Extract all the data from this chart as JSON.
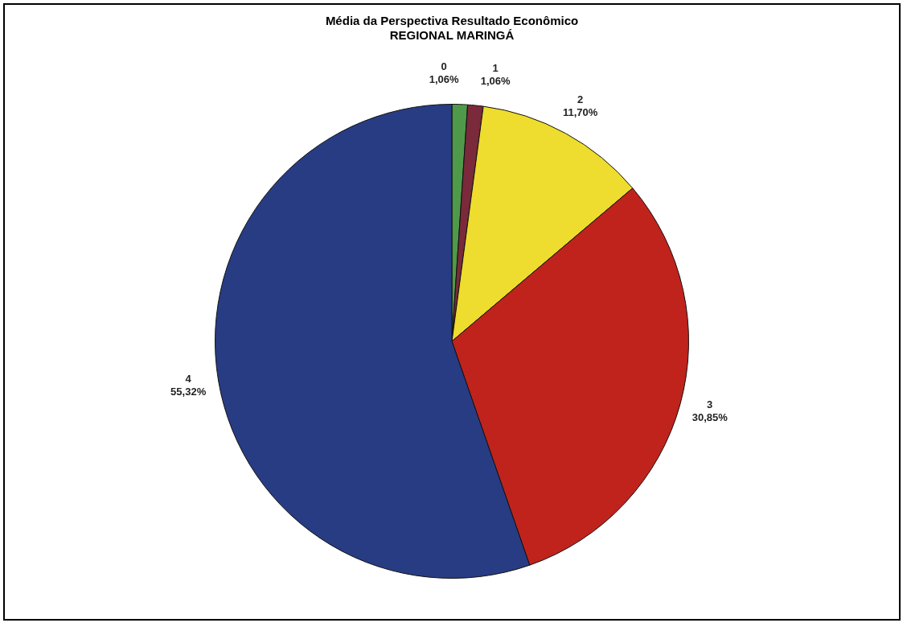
{
  "chart_data": {
    "type": "pie",
    "title": "Média da Perspectiva Resultado Econômico",
    "subtitle": "REGIONAL MARINGÁ",
    "categories": [
      "0",
      "1",
      "2",
      "3",
      "4"
    ],
    "values": [
      1.06,
      1.06,
      11.7,
      30.85,
      55.32
    ],
    "value_labels": [
      "1,06%",
      "1,06%",
      "11,70%",
      "30,85%",
      "55,32%"
    ],
    "colors": [
      "#4f9a4a",
      "#7a2a3a",
      "#eedc2e",
      "#c0231c",
      "#283c84"
    ],
    "legend": false
  }
}
